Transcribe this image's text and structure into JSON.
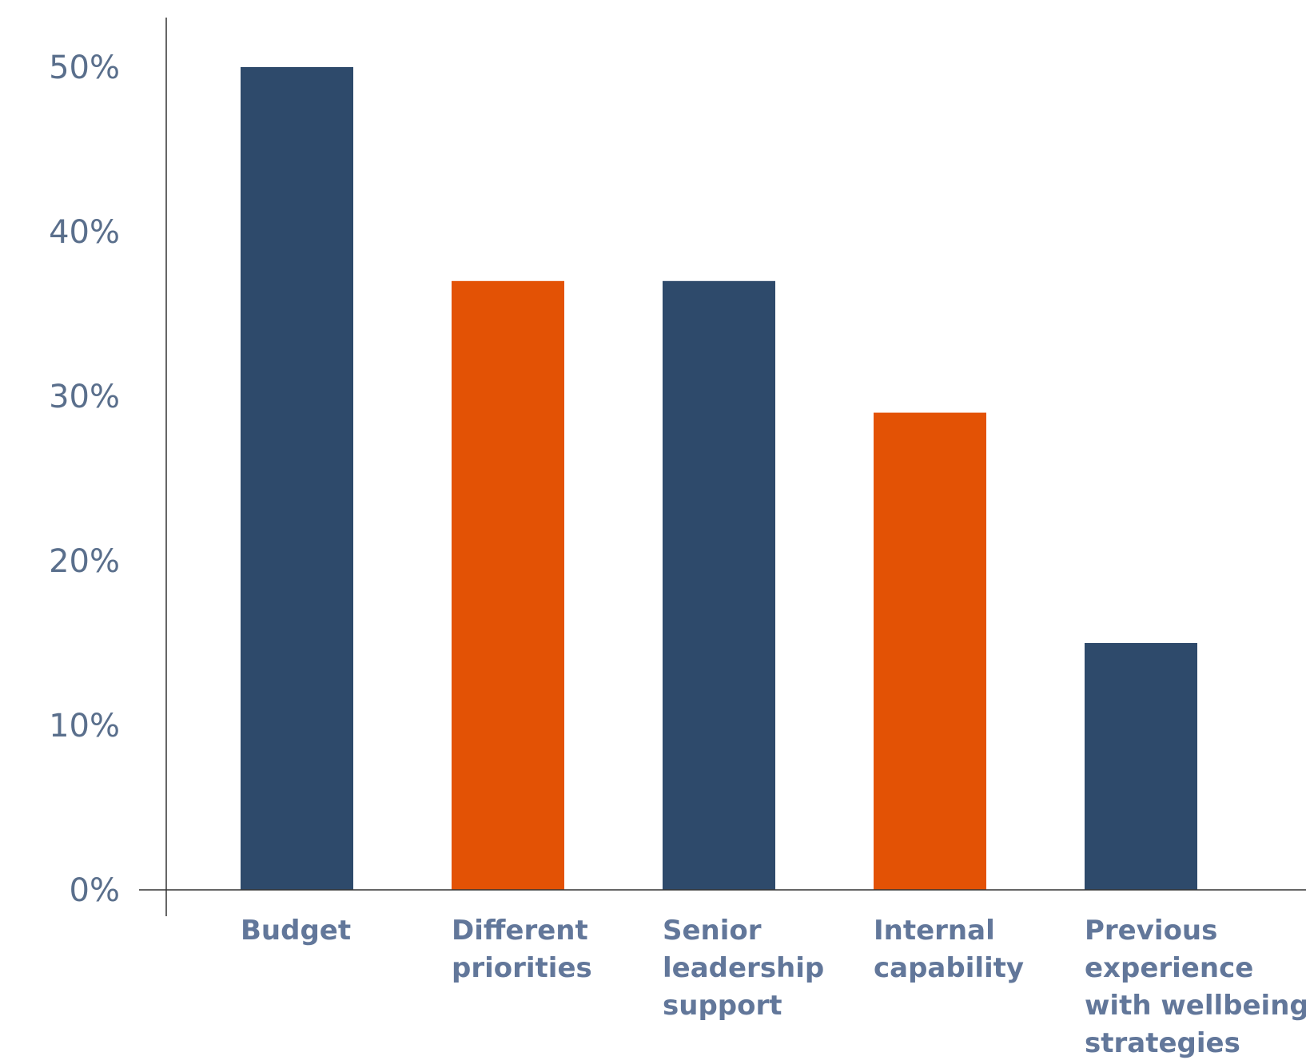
{
  "chart_data": {
    "type": "bar",
    "categories": [
      [
        "Budget"
      ],
      [
        "Different",
        "priorities"
      ],
      [
        "Senior",
        "leadership",
        "support"
      ],
      [
        "Internal",
        "capability"
      ],
      [
        "Previous",
        "experience",
        "with wellbeing",
        "strategies"
      ]
    ],
    "values": [
      50,
      37,
      37,
      29,
      15
    ],
    "bar_colors": [
      "#2e4a6b",
      "#e35205",
      "#2e4a6b",
      "#e35205",
      "#2e4a6b"
    ],
    "ylim": [
      0,
      50
    ],
    "yticks": [
      0,
      10,
      20,
      30,
      40,
      50
    ],
    "ytick_labels": [
      "0%",
      "10%",
      "20%",
      "30%",
      "40%",
      "50%"
    ],
    "title": "",
    "xlabel": "",
    "ylabel": "",
    "grid": false
  },
  "colors": {
    "primary": "#2e4a6b",
    "accent": "#e35205",
    "axis": "#333333",
    "tick_text": "#5a6f8c",
    "category_text": "#62779a"
  }
}
